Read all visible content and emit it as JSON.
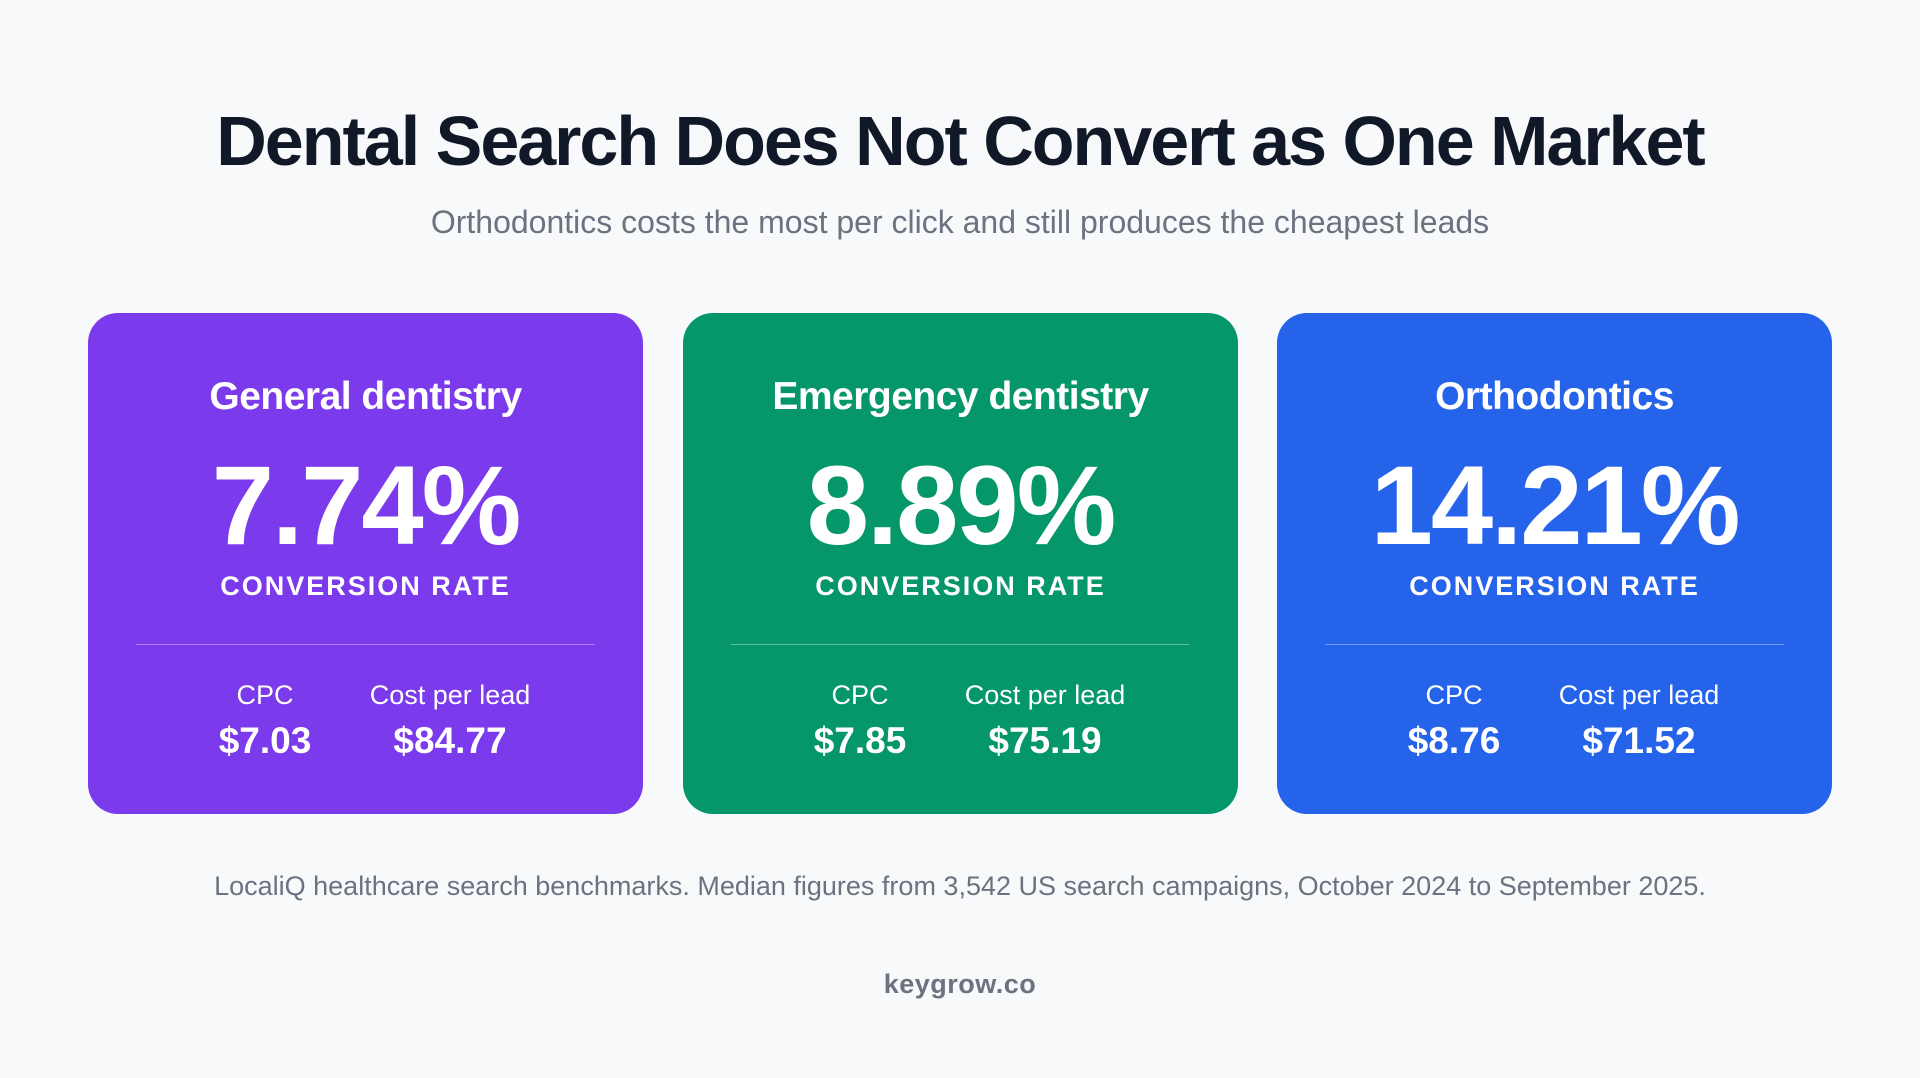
{
  "title": "Dental Search Does Not Convert as One Market",
  "subtitle": "Orthodontics costs the most per click and still produces the cheapest leads",
  "cards": [
    {
      "name": "General dentistry",
      "rate": "7.74%",
      "rate_label": "CONVERSION RATE",
      "cpc_label": "CPC",
      "cpc_value": "$7.03",
      "cpl_label": "Cost per lead",
      "cpl_value": "$84.77",
      "color": "#7c3aed"
    },
    {
      "name": "Emergency dentistry",
      "rate": "8.89%",
      "rate_label": "CONVERSION RATE",
      "cpc_label": "CPC",
      "cpc_value": "$7.85",
      "cpl_label": "Cost per lead",
      "cpl_value": "$75.19",
      "color": "#059669"
    },
    {
      "name": "Orthodontics",
      "rate": "14.21%",
      "rate_label": "CONVERSION RATE",
      "cpc_label": "CPC",
      "cpc_value": "$8.76",
      "cpl_label": "Cost per lead",
      "cpl_value": "$71.52",
      "color": "#2563eb"
    }
  ],
  "source": "LocaliQ healthcare search benchmarks. Median figures from 3,542 US search campaigns, October 2024 to September 2025.",
  "brand": "keygrow.co"
}
